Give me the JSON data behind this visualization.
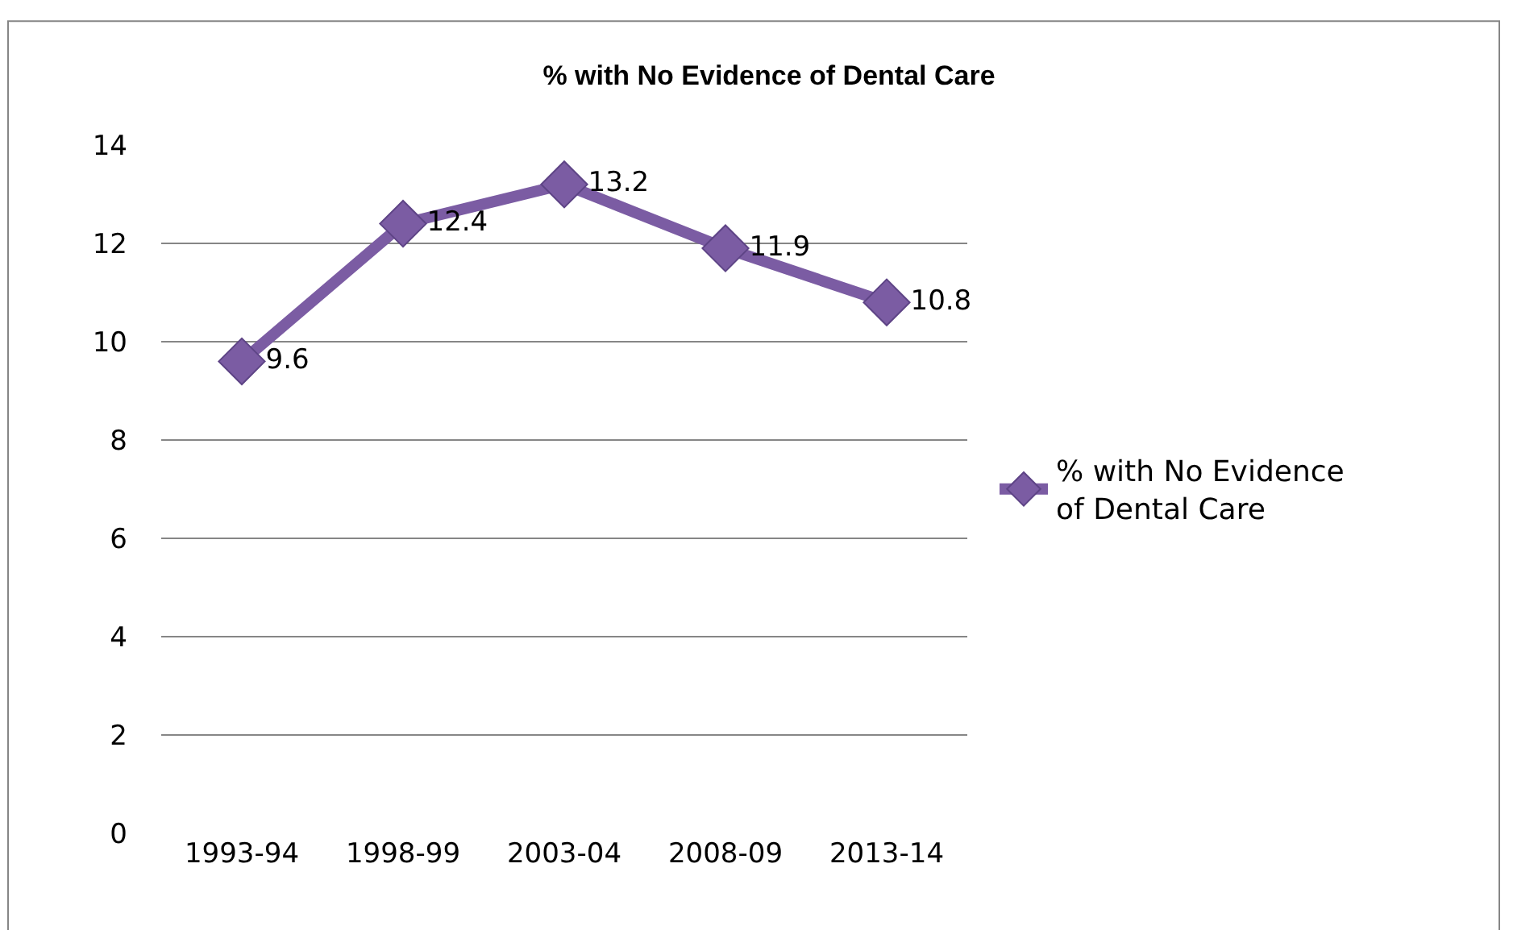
{
  "chart_data": {
    "type": "line",
    "title": "% with No Evidence of Dental Care",
    "categories": [
      "1993-94",
      "1998-99",
      "2003-04",
      "2008-09",
      "2013-14"
    ],
    "series": [
      {
        "name": "% with No Evidence of Dental Care",
        "color": "#7b5ca3",
        "values": [
          9.6,
          12.4,
          13.2,
          11.9,
          10.8
        ]
      }
    ],
    "ylim": [
      0,
      14
    ],
    "yticks": [
      0,
      2,
      4,
      6,
      8,
      10,
      12,
      14
    ],
    "grid": "y",
    "legend": "right",
    "marker": "diamond",
    "line_style": "solid",
    "data_labels": true
  }
}
